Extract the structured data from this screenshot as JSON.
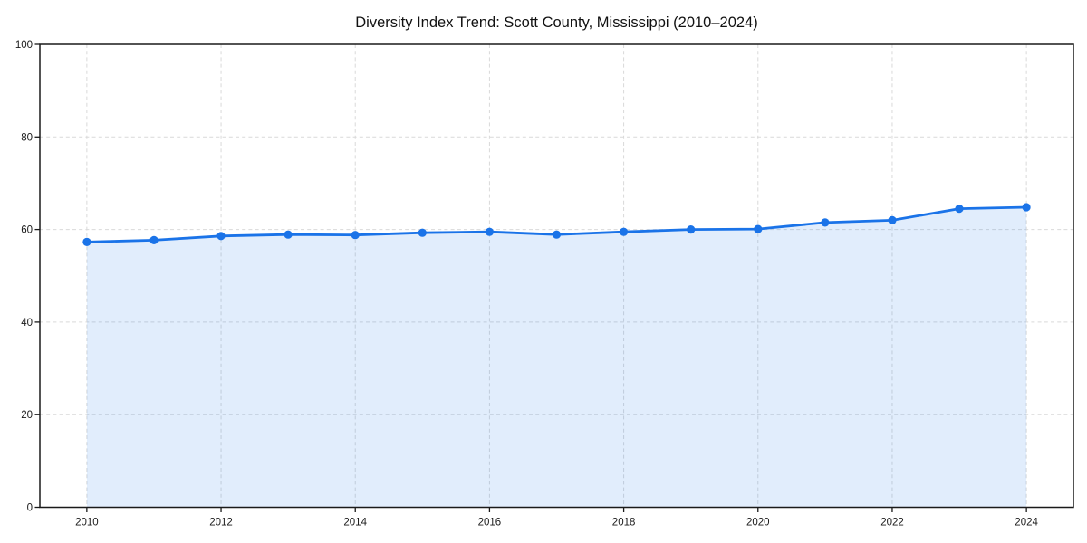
{
  "chart_data": {
    "type": "line",
    "title": "Diversity Index Trend: Scott County, Mississippi (2010–2024)",
    "xlabel": "",
    "ylabel": "",
    "x": [
      2010,
      2011,
      2012,
      2013,
      2014,
      2015,
      2016,
      2017,
      2018,
      2019,
      2020,
      2021,
      2022,
      2023,
      2024
    ],
    "values": [
      57.3,
      57.7,
      58.6,
      58.9,
      58.8,
      59.3,
      59.5,
      58.9,
      59.5,
      60.0,
      60.1,
      61.5,
      62.0,
      64.5,
      64.8
    ],
    "series_name": "Diversity Index",
    "xticks": [
      2010,
      2012,
      2014,
      2016,
      2018,
      2020,
      2022,
      2024
    ],
    "yticks": [
      0,
      20,
      40,
      60,
      80,
      100
    ],
    "xlim": [
      2009.3,
      2024.7
    ],
    "ylim": [
      0,
      100
    ],
    "grid": true,
    "grid_style": "dashed",
    "legend": "none",
    "marker": "circle",
    "fill_to_zero": true,
    "colors": {
      "line": "#1a73e8",
      "marker": "#1a73e8",
      "fill": "rgba(26,115,232,0.13)",
      "grid": "#d9d9d9",
      "spine": "#1a1a1a",
      "text": "#1a1a1a",
      "background": "#ffffff"
    }
  }
}
